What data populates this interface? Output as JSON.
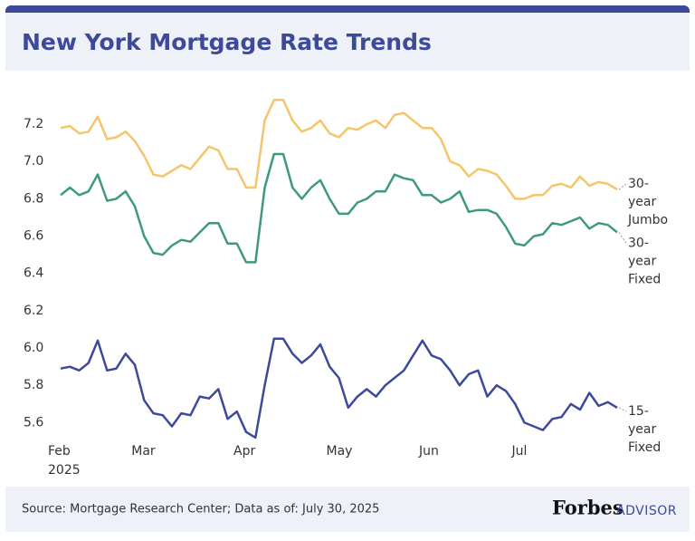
{
  "chart_data": {
    "type": "line",
    "title": "New York Mortgage Rate Trends",
    "note": "Source: Mortgage Research Center; Data as of: July 30, 2025",
    "categories": [
      "Feb 2025",
      null,
      null,
      null,
      null,
      null,
      null,
      null,
      null,
      "Mar",
      null,
      null,
      null,
      null,
      null,
      null,
      null,
      null,
      null,
      null,
      "Apr",
      null,
      null,
      null,
      null,
      null,
      null,
      null,
      null,
      null,
      "May",
      null,
      null,
      null,
      null,
      null,
      null,
      null,
      null,
      null,
      "Jun",
      null,
      null,
      null,
      null,
      null,
      null,
      null,
      null,
      null,
      "Jul",
      null,
      null,
      null,
      null,
      null,
      null,
      null,
      null,
      null,
      null
    ],
    "ylim": [
      5.5,
      7.38
    ],
    "yticks": [
      5.6,
      5.8,
      {
        "value": 6,
        "label": "6.0"
      },
      6.2,
      6.4,
      6.6,
      6.8,
      {
        "value": 7,
        "label": "7.0"
      },
      7.2
    ],
    "series": [
      {
        "name": "30-year Jumbo",
        "color": "#f5c46b",
        "values": [
          7.18,
          7.19,
          7.15,
          7.16,
          7.24,
          7.12,
          7.13,
          7.16,
          7.11,
          7.03,
          6.93,
          6.92,
          6.95,
          6.98,
          6.96,
          7.02,
          7.08,
          7.06,
          6.96,
          6.96,
          6.86,
          6.86,
          7.22,
          7.33,
          7.33,
          7.22,
          7.16,
          7.18,
          7.22,
          7.15,
          7.13,
          7.18,
          7.17,
          7.2,
          7.22,
          7.18,
          7.25,
          7.26,
          7.22,
          7.18,
          7.18,
          7.12,
          7.0,
          6.98,
          6.92,
          6.96,
          6.95,
          6.93,
          6.87,
          6.8,
          6.8,
          6.82,
          6.82,
          6.87,
          6.88,
          6.86,
          6.92,
          6.87,
          6.89,
          6.88,
          6.85
        ]
      },
      {
        "name": "30-year Fixed",
        "color": "#3f9a7d",
        "values": [
          6.82,
          6.86,
          6.82,
          6.84,
          6.93,
          6.79,
          6.8,
          6.84,
          6.76,
          6.6,
          6.51,
          6.5,
          6.55,
          6.58,
          6.57,
          6.62,
          6.67,
          6.67,
          6.56,
          6.56,
          6.46,
          6.46,
          6.86,
          7.04,
          7.04,
          6.86,
          6.8,
          6.86,
          6.9,
          6.8,
          6.72,
          6.72,
          6.78,
          6.8,
          6.84,
          6.84,
          6.93,
          6.91,
          6.9,
          6.82,
          6.82,
          6.78,
          6.8,
          6.84,
          6.73,
          6.74,
          6.74,
          6.72,
          6.65,
          6.56,
          6.55,
          6.6,
          6.61,
          6.67,
          6.66,
          6.68,
          6.7,
          6.64,
          6.67,
          6.66,
          6.62
        ]
      },
      {
        "name": "15-year Fixed",
        "color": "#3d4a9a",
        "values": [
          5.89,
          5.9,
          5.88,
          5.92,
          6.04,
          5.88,
          5.89,
          5.97,
          5.91,
          5.72,
          5.65,
          5.64,
          5.58,
          5.65,
          5.64,
          5.74,
          5.73,
          5.78,
          5.62,
          5.66,
          5.55,
          5.52,
          5.8,
          6.05,
          6.05,
          5.97,
          5.92,
          5.96,
          6.02,
          5.9,
          5.84,
          5.68,
          5.74,
          5.78,
          5.74,
          5.8,
          5.84,
          5.88,
          5.96,
          6.04,
          5.96,
          5.94,
          5.88,
          5.8,
          5.86,
          5.88,
          5.74,
          5.8,
          5.77,
          5.7,
          5.6,
          5.58,
          5.56,
          5.62,
          5.63,
          5.7,
          5.67,
          5.76,
          5.69,
          5.71,
          5.68
        ]
      }
    ]
  },
  "brand": {
    "name": "Forbes",
    "suffix": "ADVISOR"
  }
}
